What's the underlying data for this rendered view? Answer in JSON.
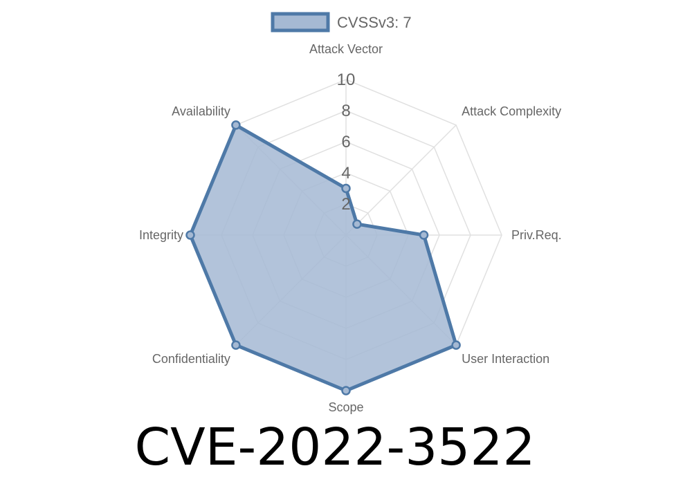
{
  "chart_data": {
    "type": "radar",
    "legend": {
      "label": "CVSSv3: 7",
      "position": "top"
    },
    "axes": [
      "Attack Vector",
      "Attack Complexity",
      "Priv.Req.",
      "User Interaction",
      "Scope",
      "Confidentiality",
      "Integrity",
      "Availability"
    ],
    "series": [
      {
        "name": "CVSSv3: 7",
        "values": [
          3,
          1,
          5,
          10,
          10,
          10,
          10,
          10
        ]
      }
    ],
    "rlim": [
      0,
      10
    ],
    "ticks": [
      "2",
      "4",
      "6",
      "8",
      "10"
    ],
    "tick_values": [
      2,
      4,
      6,
      8,
      10
    ],
    "grid": true,
    "colors": {
      "line": "#4e79a7",
      "fill": "#a5b9d3",
      "grid": "#e0e0e0"
    }
  },
  "title": "CVE-2022-3522"
}
